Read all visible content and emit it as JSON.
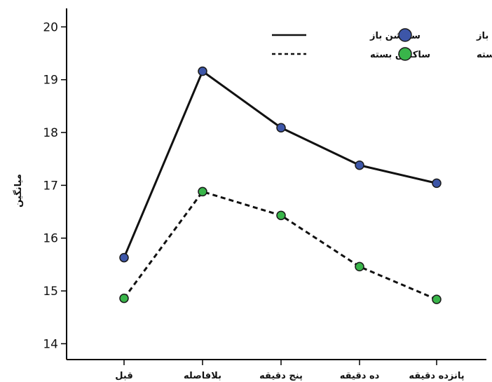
{
  "chart_data": {
    "type": "line",
    "title": "",
    "xlabel": "",
    "ylabel": "میانگین",
    "categories": [
      "قبل",
      "بلافاصله",
      "پنج دقیقه",
      "ده دقیقه",
      "پانزده دقیقه"
    ],
    "ylim": [
      13.7,
      20.35
    ],
    "yticks": [
      14,
      15,
      16,
      17,
      18,
      19,
      20
    ],
    "grid": false,
    "legend_position": "top-right",
    "series": [
      {
        "name": "ساکشن باز",
        "line_style": "solid",
        "marker_color": "#3d56a8",
        "values": [
          15.63,
          19.16,
          18.09,
          17.38,
          17.04
        ]
      },
      {
        "name": "ساکشن بسته",
        "line_style": "dashed",
        "marker_color": "#39b54a",
        "values": [
          14.86,
          16.88,
          16.43,
          15.46,
          14.84
        ]
      }
    ]
  }
}
